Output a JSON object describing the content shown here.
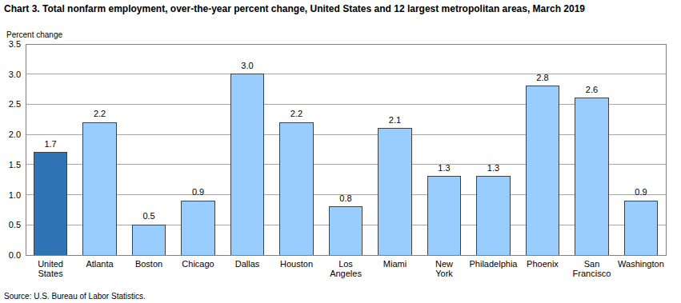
{
  "chart_data": {
    "type": "bar",
    "title": "Chart 3. Total nonfarm employment, over-the-year percent change, United States and 12 largest metropolitan areas, March 2019",
    "y_label": "Percent change",
    "source": "Source: U.S. Bureau of Labor Statistics.",
    "categories": [
      "United States",
      "Atlanta",
      "Boston",
      "Chicago",
      "Dallas",
      "Houston",
      "Los Angeles",
      "Miami",
      "New York",
      "Philadelphia",
      "Phoenix",
      "San Francisco",
      "Washington"
    ],
    "values": [
      1.7,
      2.2,
      0.5,
      0.9,
      3.0,
      2.2,
      0.8,
      2.1,
      1.3,
      1.3,
      2.8,
      2.6,
      0.9
    ],
    "value_labels": [
      "1.7",
      "2.2",
      "0.5",
      "0.9",
      "3.0",
      "2.2",
      "0.8",
      "2.1",
      "1.3",
      "1.3",
      "2.8",
      "2.6",
      "0.9"
    ],
    "colors": [
      "#2e74b5",
      "#99ccff",
      "#99ccff",
      "#99ccff",
      "#99ccff",
      "#99ccff",
      "#99ccff",
      "#99ccff",
      "#99ccff",
      "#99ccff",
      "#99ccff",
      "#99ccff",
      "#99ccff"
    ],
    "ylim": [
      0,
      3.5
    ],
    "yticks": [
      {
        "value": 0,
        "label": "0.0"
      },
      0.5,
      {
        "value": 1,
        "label": "1.0"
      },
      1.5,
      {
        "value": 2,
        "label": "2.0"
      },
      2.5,
      {
        "value": 3,
        "label": "3.0"
      },
      3.5
    ],
    "grid": true,
    "data_labels": true
  }
}
